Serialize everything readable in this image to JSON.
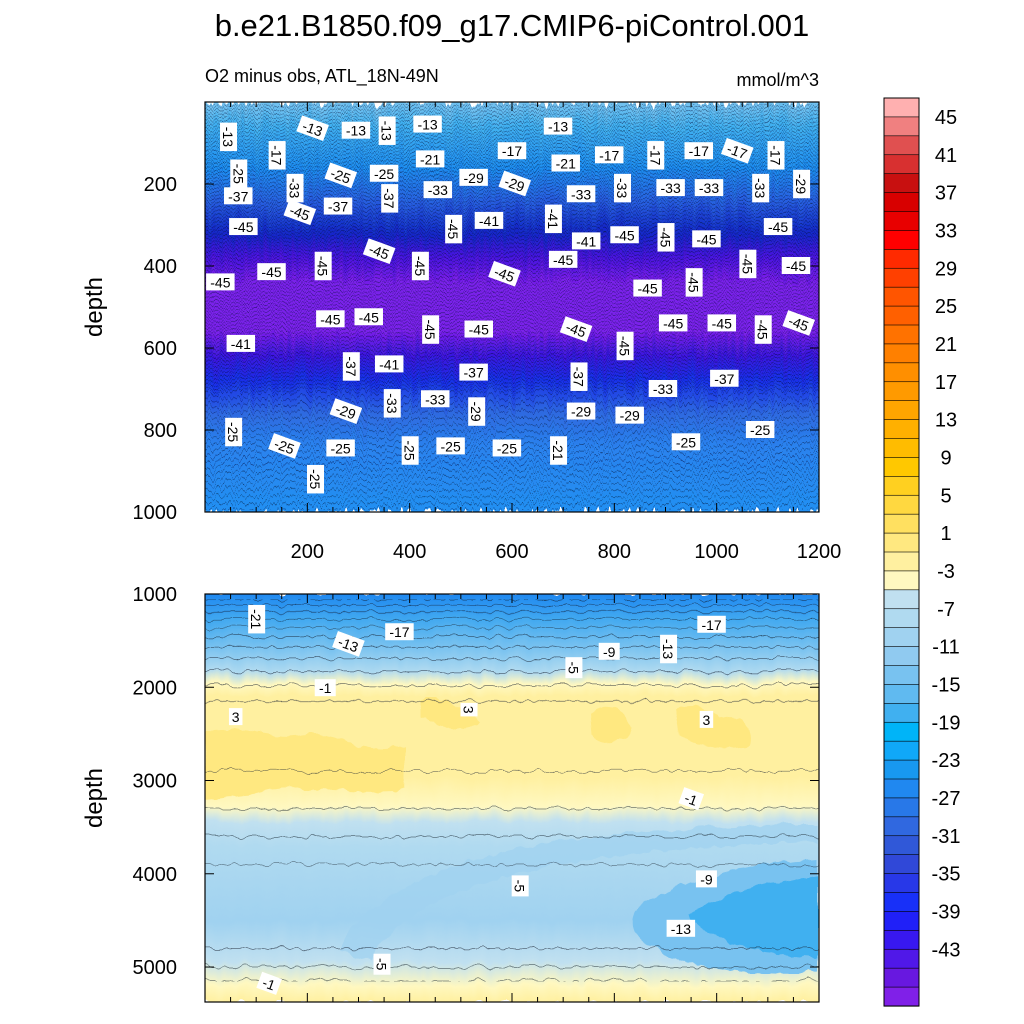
{
  "figure": {
    "title": "b.e21.B1850.f09_g17.CMIP6-piControl.001",
    "subtitle_left": "O2 minus obs, ATL_18N-49N",
    "subtitle_right": "mmol/m^3"
  },
  "chart_data": [
    {
      "type": "heatmap",
      "panel": "upper",
      "ylabel": "depth",
      "xlabel": "",
      "xlim": [
        0,
        1200
      ],
      "ylim": [
        1000,
        0
      ],
      "y_inverted": true,
      "x_ticks": [
        "200",
        "400",
        "600",
        "800",
        "1000",
        "1200"
      ],
      "y_ticks": [
        "200",
        "400",
        "600",
        "800",
        "1000"
      ],
      "depth_profile": [
        {
          "depth": 0,
          "value": -5
        },
        {
          "depth": 100,
          "value": -13
        },
        {
          "depth": 200,
          "value": -27
        },
        {
          "depth": 300,
          "value": -41
        },
        {
          "depth": 400,
          "value": -46
        },
        {
          "depth": 500,
          "value": -46
        },
        {
          "depth": 560,
          "value": -43
        },
        {
          "depth": 650,
          "value": -37
        },
        {
          "depth": 800,
          "value": -27
        },
        {
          "depth": 1000,
          "value": -24
        }
      ],
      "contour_labels": [
        {
          "x": 45,
          "y": 85,
          "text": "-13"
        },
        {
          "x": 210,
          "y": 65,
          "text": "-13"
        },
        {
          "x": 295,
          "y": 70,
          "text": "-13"
        },
        {
          "x": 355,
          "y": 70,
          "text": "-13"
        },
        {
          "x": 435,
          "y": 55,
          "text": "-13"
        },
        {
          "x": 690,
          "y": 60,
          "text": "-13"
        },
        {
          "x": 140,
          "y": 130,
          "text": "-17"
        },
        {
          "x": 600,
          "y": 120,
          "text": "-17"
        },
        {
          "x": 790,
          "y": 130,
          "text": "-17"
        },
        {
          "x": 880,
          "y": 130,
          "text": "-17"
        },
        {
          "x": 965,
          "y": 120,
          "text": "-17"
        },
        {
          "x": 1040,
          "y": 120,
          "text": "-17"
        },
        {
          "x": 1115,
          "y": 130,
          "text": "-17"
        },
        {
          "x": 440,
          "y": 140,
          "text": "-21"
        },
        {
          "x": 705,
          "y": 150,
          "text": "-21"
        },
        {
          "x": 65,
          "y": 175,
          "text": "-25"
        },
        {
          "x": 265,
          "y": 180,
          "text": "-25"
        },
        {
          "x": 350,
          "y": 175,
          "text": "-25"
        },
        {
          "x": 175,
          "y": 210,
          "text": "-33"
        },
        {
          "x": 455,
          "y": 215,
          "text": "-33"
        },
        {
          "x": 735,
          "y": 225,
          "text": "-33"
        },
        {
          "x": 815,
          "y": 210,
          "text": "-33"
        },
        {
          "x": 910,
          "y": 210,
          "text": "-33"
        },
        {
          "x": 985,
          "y": 210,
          "text": "-33"
        },
        {
          "x": 1085,
          "y": 210,
          "text": "-33"
        },
        {
          "x": 525,
          "y": 185,
          "text": "-29"
        },
        {
          "x": 605,
          "y": 200,
          "text": "-29"
        },
        {
          "x": 1165,
          "y": 200,
          "text": "-29"
        },
        {
          "x": 65,
          "y": 230,
          "text": "-37"
        },
        {
          "x": 260,
          "y": 255,
          "text": "-37"
        },
        {
          "x": 360,
          "y": 235,
          "text": "-37"
        },
        {
          "x": 185,
          "y": 270,
          "text": "-45"
        },
        {
          "x": 75,
          "y": 305,
          "text": "-45"
        },
        {
          "x": 485,
          "y": 310,
          "text": "-45"
        },
        {
          "x": 1120,
          "y": 305,
          "text": "-45"
        },
        {
          "x": 555,
          "y": 290,
          "text": "-41"
        },
        {
          "x": 680,
          "y": 285,
          "text": "-41"
        },
        {
          "x": 745,
          "y": 340,
          "text": "-41"
        },
        {
          "x": 820,
          "y": 325,
          "text": "-45"
        },
        {
          "x": 900,
          "y": 330,
          "text": "-45"
        },
        {
          "x": 980,
          "y": 335,
          "text": "-45"
        },
        {
          "x": 340,
          "y": 365,
          "text": "-45"
        },
        {
          "x": 420,
          "y": 400,
          "text": "-45"
        },
        {
          "x": 130,
          "y": 415,
          "text": "-45"
        },
        {
          "x": 30,
          "y": 440,
          "text": "-45"
        },
        {
          "x": 230,
          "y": 400,
          "text": "-45"
        },
        {
          "x": 585,
          "y": 420,
          "text": "-45"
        },
        {
          "x": 700,
          "y": 385,
          "text": "-45"
        },
        {
          "x": 1060,
          "y": 395,
          "text": "-45"
        },
        {
          "x": 1155,
          "y": 400,
          "text": "-45"
        },
        {
          "x": 865,
          "y": 455,
          "text": "-45"
        },
        {
          "x": 955,
          "y": 440,
          "text": "-45"
        },
        {
          "x": 245,
          "y": 530,
          "text": "-45"
        },
        {
          "x": 320,
          "y": 525,
          "text": "-45"
        },
        {
          "x": 440,
          "y": 555,
          "text": "-45"
        },
        {
          "x": 535,
          "y": 555,
          "text": "-45"
        },
        {
          "x": 725,
          "y": 555,
          "text": "-45"
        },
        {
          "x": 820,
          "y": 595,
          "text": "-45"
        },
        {
          "x": 915,
          "y": 540,
          "text": "-45"
        },
        {
          "x": 1010,
          "y": 540,
          "text": "-45"
        },
        {
          "x": 1090,
          "y": 555,
          "text": "-45"
        },
        {
          "x": 1160,
          "y": 540,
          "text": "-45"
        },
        {
          "x": 70,
          "y": 590,
          "text": "-41"
        },
        {
          "x": 285,
          "y": 645,
          "text": "-37"
        },
        {
          "x": 360,
          "y": 640,
          "text": "-41"
        },
        {
          "x": 525,
          "y": 660,
          "text": "-37"
        },
        {
          "x": 730,
          "y": 670,
          "text": "-37"
        },
        {
          "x": 1015,
          "y": 675,
          "text": "-37"
        },
        {
          "x": 895,
          "y": 700,
          "text": "-33"
        },
        {
          "x": 365,
          "y": 735,
          "text": "-33"
        },
        {
          "x": 450,
          "y": 725,
          "text": "-33"
        },
        {
          "x": 275,
          "y": 755,
          "text": "-29"
        },
        {
          "x": 530,
          "y": 755,
          "text": "-29"
        },
        {
          "x": 735,
          "y": 755,
          "text": "-29"
        },
        {
          "x": 830,
          "y": 765,
          "text": "-29"
        },
        {
          "x": 55,
          "y": 805,
          "text": "-25"
        },
        {
          "x": 155,
          "y": 840,
          "text": "-25"
        },
        {
          "x": 265,
          "y": 845,
          "text": "-25"
        },
        {
          "x": 400,
          "y": 850,
          "text": "-25"
        },
        {
          "x": 480,
          "y": 840,
          "text": "-25"
        },
        {
          "x": 590,
          "y": 845,
          "text": "-25"
        },
        {
          "x": 690,
          "y": 850,
          "text": "-21"
        },
        {
          "x": 940,
          "y": 830,
          "text": "-25"
        },
        {
          "x": 1085,
          "y": 800,
          "text": "-25"
        },
        {
          "x": 215,
          "y": 920,
          "text": "-25"
        }
      ]
    },
    {
      "type": "heatmap",
      "panel": "lower",
      "ylabel": "depth",
      "xlabel": "",
      "xlim": [
        0,
        1200
      ],
      "ylim": [
        5375,
        1000
      ],
      "y_inverted": true,
      "y_ticks": [
        "1000",
        "2000",
        "3000",
        "4000",
        "5000"
      ],
      "contour_labels": [
        {
          "x": 100,
          "y": 1270,
          "text": "-21"
        },
        {
          "x": 280,
          "y": 1540,
          "text": "-13"
        },
        {
          "x": 380,
          "y": 1410,
          "text": "-17"
        },
        {
          "x": 905,
          "y": 1590,
          "text": "-13"
        },
        {
          "x": 990,
          "y": 1330,
          "text": "-17"
        },
        {
          "x": 790,
          "y": 1620,
          "text": "-9"
        },
        {
          "x": 720,
          "y": 1790,
          "text": "-5"
        },
        {
          "x": 235,
          "y": 2010,
          "text": "-1"
        },
        {
          "x": 60,
          "y": 2320,
          "text": "3"
        },
        {
          "x": 515,
          "y": 2240,
          "text": "3"
        },
        {
          "x": 980,
          "y": 2350,
          "text": "3"
        },
        {
          "x": 950,
          "y": 3200,
          "text": "-1"
        },
        {
          "x": 615,
          "y": 4130,
          "text": "-5"
        },
        {
          "x": 980,
          "y": 4060,
          "text": "-9"
        },
        {
          "x": 930,
          "y": 4590,
          "text": "-13"
        },
        {
          "x": 345,
          "y": 4970,
          "text": "-5"
        },
        {
          "x": 125,
          "y": 5180,
          "text": "-1"
        }
      ]
    }
  ],
  "colorbar": {
    "labels": [
      "45",
      "41",
      "37",
      "33",
      "29",
      "25",
      "21",
      "17",
      "13",
      "9",
      "5",
      "1",
      "-3",
      "-7",
      "-11",
      "-15",
      "-19",
      "-23",
      "-27",
      "-31",
      "-35",
      "-39",
      "-43"
    ],
    "colors": [
      "#ffb0b0",
      "#f08080",
      "#e05050",
      "#d83030",
      "#c81010",
      "#d80000",
      "#e80000",
      "#ff0000",
      "#ff2a00",
      "#ff4000",
      "#ff5500",
      "#ff6000",
      "#ff7200",
      "#ff8000",
      "#ff8f00",
      "#ff9a00",
      "#ffa500",
      "#ffb000",
      "#ffbc00",
      "#ffc800",
      "#ffd020",
      "#ffd840",
      "#ffe060",
      "#ffe880",
      "#fff0a0",
      "#fff8c0",
      "#c0e0f0",
      "#b0daf0",
      "#a0d2f0",
      "#90caf0",
      "#78c2f0",
      "#60baf0",
      "#40b0f0",
      "#00b4f8",
      "#10a8f8",
      "#1898f0",
      "#2088f0",
      "#2878e8",
      "#3068e0",
      "#3058d8",
      "#3048d8",
      "#2838e8",
      "#1830f8",
      "#2020f8",
      "#3818f0",
      "#5018e8",
      "#6818e0",
      "#8020e8"
    ]
  }
}
